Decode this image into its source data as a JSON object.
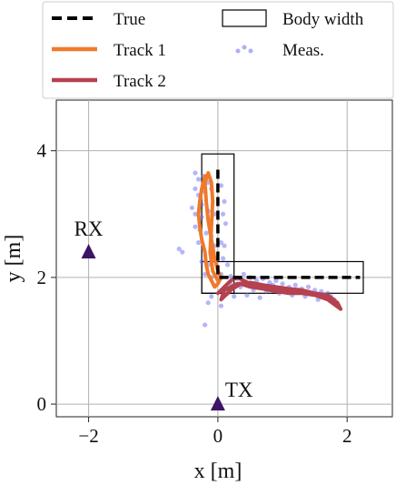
{
  "chart_data": {
    "type": "scatter",
    "xlabel": "x [m]",
    "ylabel": "y [m]",
    "xlim": [
      -2.5,
      2.7
    ],
    "ylim": [
      -0.2,
      4.8
    ],
    "xticks": [
      -2,
      0,
      2
    ],
    "xtick_labels": [
      "−2",
      "0",
      "2"
    ],
    "yticks": [
      0,
      2,
      4
    ],
    "ytick_labels": [
      "0",
      "2",
      "4"
    ],
    "grid": true,
    "legend_position": "top",
    "colors": {
      "true": "#000000",
      "track1": "#f07a2a",
      "track2": "#b5424f",
      "meas": "#6b6bf5",
      "marker": "#3d1466"
    },
    "legend": {
      "true": "True",
      "track1": "Track 1",
      "track2": "Track 2",
      "body_width": "Body width",
      "meas": "Meas."
    },
    "markers": [
      {
        "label": "RX",
        "x": -2.0,
        "y": 2.4
      },
      {
        "label": "TX",
        "x": 0.0,
        "y": 0.0
      }
    ],
    "true_path": [
      [
        0.0,
        3.7
      ],
      [
        0.0,
        2.0
      ],
      [
        2.2,
        2.0
      ]
    ],
    "body_width_rects": [
      {
        "x0": -0.25,
        "y0": 1.75,
        "x1": 0.25,
        "y1": 3.95
      },
      {
        "x0": -0.25,
        "y0": 1.75,
        "x1": 2.25,
        "y1": 2.25
      }
    ],
    "series": [
      {
        "name": "Track 1",
        "points": [
          [
            -0.2,
            3.6
          ],
          [
            -0.25,
            3.4
          ],
          [
            -0.28,
            3.2
          ],
          [
            -0.3,
            3.0
          ],
          [
            -0.28,
            2.8
          ],
          [
            -0.25,
            2.6
          ],
          [
            -0.2,
            2.4
          ],
          [
            -0.18,
            2.2
          ],
          [
            -0.15,
            2.05
          ],
          [
            -0.1,
            1.95
          ],
          [
            -0.05,
            1.85
          ],
          [
            0.0,
            1.9
          ],
          [
            0.05,
            2.0
          ],
          [
            0.0,
            2.1
          ],
          [
            -0.05,
            2.3
          ],
          [
            -0.1,
            2.6
          ],
          [
            -0.15,
            2.9
          ],
          [
            -0.18,
            3.2
          ],
          [
            -0.2,
            3.5
          ],
          [
            -0.15,
            3.65
          ],
          [
            -0.1,
            3.5
          ],
          [
            -0.08,
            3.2
          ],
          [
            -0.1,
            2.8
          ],
          [
            -0.12,
            2.4
          ],
          [
            -0.08,
            2.1
          ],
          [
            0.0,
            1.95
          ]
        ]
      },
      {
        "name": "Track 2",
        "points": [
          [
            0.0,
            1.75
          ],
          [
            0.1,
            1.85
          ],
          [
            0.2,
            1.95
          ],
          [
            0.3,
            2.0
          ],
          [
            0.5,
            1.9
          ],
          [
            0.7,
            1.85
          ],
          [
            0.9,
            1.82
          ],
          [
            1.1,
            1.8
          ],
          [
            1.3,
            1.78
          ],
          [
            1.5,
            1.75
          ],
          [
            1.7,
            1.72
          ],
          [
            1.85,
            1.6
          ],
          [
            1.9,
            1.5
          ],
          [
            1.7,
            1.65
          ],
          [
            1.5,
            1.72
          ],
          [
            1.3,
            1.75
          ],
          [
            1.1,
            1.75
          ],
          [
            0.9,
            1.78
          ],
          [
            0.7,
            1.82
          ],
          [
            0.5,
            1.85
          ],
          [
            0.35,
            1.9
          ],
          [
            0.2,
            1.8
          ],
          [
            0.1,
            1.7
          ],
          [
            0.05,
            1.65
          ],
          [
            0.1,
            1.8
          ],
          [
            0.3,
            1.9
          ],
          [
            0.5,
            1.92
          ],
          [
            0.7,
            1.88
          ],
          [
            0.9,
            1.85
          ],
          [
            1.1,
            1.82
          ],
          [
            1.3,
            1.8
          ],
          [
            1.5,
            1.75
          ],
          [
            1.7,
            1.7
          ]
        ]
      }
    ],
    "measurements": [
      [
        -0.35,
        3.65
      ],
      [
        -0.3,
        3.55
      ],
      [
        -0.22,
        3.6
      ],
      [
        -0.15,
        3.5
      ],
      [
        -0.35,
        3.4
      ],
      [
        -0.3,
        3.3
      ],
      [
        -0.2,
        3.35
      ],
      [
        0.05,
        3.45
      ],
      [
        0.1,
        3.2
      ],
      [
        -0.4,
        3.1
      ],
      [
        -0.35,
        3.0
      ],
      [
        -0.25,
        2.95
      ],
      [
        -0.15,
        3.05
      ],
      [
        0.08,
        3.0
      ],
      [
        0.12,
        2.85
      ],
      [
        -0.35,
        2.8
      ],
      [
        -0.28,
        2.75
      ],
      [
        -0.18,
        2.7
      ],
      [
        -0.1,
        2.65
      ],
      [
        0.05,
        2.55
      ],
      [
        0.1,
        2.5
      ],
      [
        -0.3,
        2.55
      ],
      [
        -0.22,
        2.45
      ],
      [
        -0.6,
        2.45
      ],
      [
        -0.55,
        2.4
      ],
      [
        -0.1,
        2.35
      ],
      [
        0.08,
        2.3
      ],
      [
        -0.25,
        2.25
      ],
      [
        -0.15,
        2.2
      ],
      [
        0.15,
        2.2
      ],
      [
        -0.2,
        2.05
      ],
      [
        -0.1,
        2.0
      ],
      [
        0.05,
        2.05
      ],
      [
        0.2,
        2.02
      ],
      [
        0.3,
        1.98
      ],
      [
        0.4,
        2.05
      ],
      [
        0.5,
        2.0
      ],
      [
        0.6,
        1.95
      ],
      [
        0.7,
        1.98
      ],
      [
        0.8,
        1.92
      ],
      [
        0.9,
        1.95
      ],
      [
        1.0,
        1.9
      ],
      [
        1.1,
        1.85
      ],
      [
        1.2,
        1.88
      ],
      [
        1.3,
        1.82
      ],
      [
        1.4,
        1.85
      ],
      [
        1.5,
        1.8
      ],
      [
        1.6,
        1.78
      ],
      [
        1.7,
        1.75
      ],
      [
        1.75,
        1.7
      ],
      [
        1.8,
        1.65
      ],
      [
        0.35,
        1.85
      ],
      [
        0.55,
        1.8
      ],
      [
        0.75,
        1.78
      ],
      [
        0.95,
        1.75
      ],
      [
        1.15,
        1.72
      ],
      [
        1.35,
        1.7
      ],
      [
        1.55,
        1.65
      ],
      [
        0.15,
        1.75
      ],
      [
        0.25,
        1.7
      ],
      [
        0.45,
        1.72
      ],
      [
        0.65,
        1.68
      ],
      [
        -0.15,
        1.6
      ],
      [
        0.05,
        1.55
      ],
      [
        -0.1,
        1.7
      ],
      [
        -0.2,
        1.25
      ],
      [
        -0.05,
        2.5
      ],
      [
        -0.05,
        3.0
      ],
      [
        -0.1,
        3.4
      ],
      [
        -0.25,
        3.15
      ],
      [
        0.2,
        1.9
      ],
      [
        1.0,
        1.8
      ],
      [
        1.2,
        1.76
      ],
      [
        0.85,
        1.88
      ]
    ]
  }
}
